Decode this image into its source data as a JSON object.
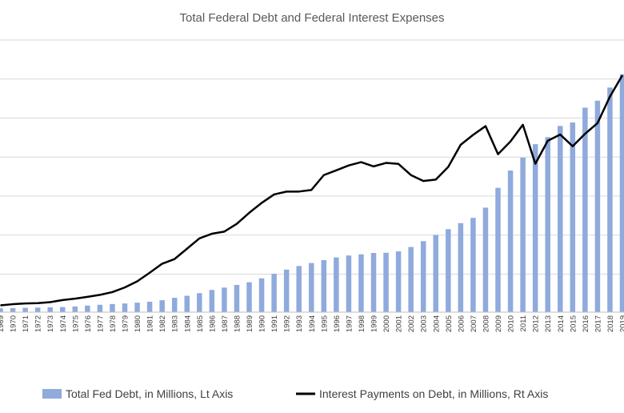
{
  "chart_data": {
    "type": "bar",
    "title": "Total Federal Debt and Federal Interest Expenses",
    "categories": [
      "1969",
      "1970",
      "1971",
      "1972",
      "1973",
      "1974",
      "1975",
      "1976",
      "1977",
      "1978",
      "1979",
      "1980",
      "1981",
      "1982",
      "1983",
      "1984",
      "1985",
      "1986",
      "1987",
      "1988",
      "1989",
      "1990",
      "1991",
      "1992",
      "1993",
      "1994",
      "1995",
      "1996",
      "1997",
      "1998",
      "1999",
      "2000",
      "2001",
      "2002",
      "2003",
      "2004",
      "2005",
      "2006",
      "2007",
      "2008",
      "2009",
      "2010",
      "2011",
      "2012",
      "2013",
      "2014",
      "2015",
      "2016",
      "2017",
      "2018",
      "2019"
    ],
    "series": [
      {
        "name": "Total Fed Debt, in Millions, Lt Axis",
        "kind": "bar",
        "axis": "left",
        "color": "#8faadc",
        "values": [
          366,
          381,
          408,
          436,
          466,
          484,
          542,
          629,
          706,
          777,
          829,
          909,
          995,
          1137,
          1372,
          1565,
          1818,
          2121,
          2346,
          2602,
          2857,
          3233,
          3665,
          4065,
          4411,
          4693,
          4974,
          5225,
          5413,
          5526,
          5656,
          5674,
          5807,
          6228,
          6783,
          7379,
          7933,
          8507,
          9008,
          9986,
          11876,
          13529,
          14764,
          16051,
          16719,
          17794,
          18120,
          19539,
          20206,
          21462,
          22719
        ]
      },
      {
        "name": "Interest Payments on Debt, in Millions, Rt Axis",
        "kind": "line",
        "axis": "right",
        "color": "#000000",
        "values": [
          16.6,
          19.3,
          21.0,
          21.8,
          24.2,
          29.3,
          32.7,
          37.1,
          41.9,
          48.7,
          59.9,
          74.8,
          95.6,
          117.4,
          128.8,
          153.8,
          178.9,
          190.2,
          195.4,
          214.1,
          240.9,
          264.9,
          285.5,
          292.4,
          292.5,
          296.3,
          332.4,
          344.0,
          355.8,
          363.8,
          353.5,
          362.0,
          359.5,
          332.5,
          318.1,
          321.6,
          352.3,
          405.9,
          429.9,
          451.2,
          383.1,
          413.9,
          454.4,
          359.8,
          415.7,
          430.8,
          402.4,
          432.6,
          458.5,
          523.0,
          574.6
        ]
      }
    ],
    "grid": true,
    "legend_position": "bottom"
  }
}
